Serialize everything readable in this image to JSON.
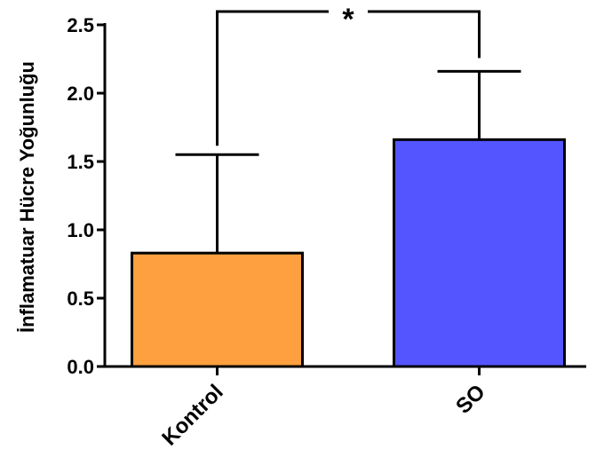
{
  "chart_data": {
    "type": "bar",
    "title": "",
    "xlabel": "",
    "ylabel": "İnflamatuar Hücre Yoğunluğu",
    "ylim": [
      0,
      2.5
    ],
    "yticks": [
      "0.0",
      "0.5",
      "1.0",
      "1.5",
      "2.0",
      "2.5"
    ],
    "categories": [
      "Kontrol",
      "SO"
    ],
    "values": [
      0.83,
      1.66
    ],
    "error_upper": [
      0.72,
      0.5
    ],
    "colors": [
      "#ffa040",
      "#5555ff"
    ],
    "significance": {
      "between": [
        0,
        1
      ],
      "label": "*"
    },
    "grid": false,
    "legend": "none"
  }
}
